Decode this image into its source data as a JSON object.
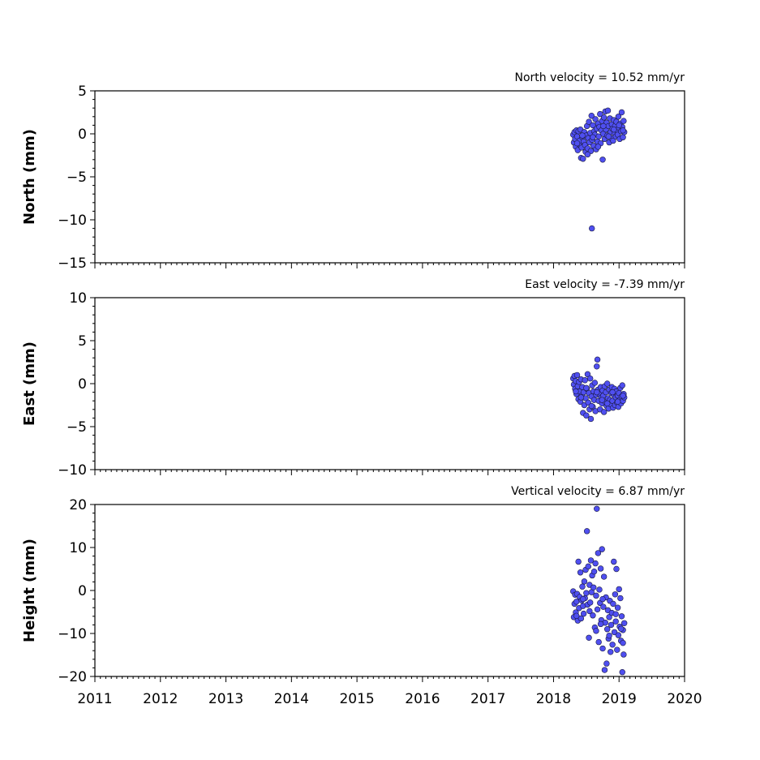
{
  "chart_data": [
    {
      "type": "scatter",
      "title": "North velocity = 10.52 mm/yr",
      "ylabel": "North (mm)",
      "xlim": [
        2011,
        2020
      ],
      "ylim": [
        -15,
        5
      ],
      "yticks": [
        5,
        0,
        -5,
        -10,
        -15
      ],
      "marker_color": "#4f4ff0",
      "points": [
        [
          2018.3,
          -0.1
        ],
        [
          2018.31,
          -1.0
        ],
        [
          2018.32,
          0.2
        ],
        [
          2018.33,
          -0.6
        ],
        [
          2018.34,
          -1.5
        ],
        [
          2018.35,
          0.4
        ],
        [
          2018.36,
          -0.3
        ],
        [
          2018.37,
          -1.9
        ],
        [
          2018.38,
          0.3
        ],
        [
          2018.39,
          -1.2
        ],
        [
          2018.4,
          -0.8
        ],
        [
          2018.41,
          0.5
        ],
        [
          2018.42,
          -2.8
        ],
        [
          2018.43,
          -1.6
        ],
        [
          2018.44,
          -0.4
        ],
        [
          2018.45,
          -2.9
        ],
        [
          2018.46,
          -0.9
        ],
        [
          2018.47,
          0.2
        ],
        [
          2018.48,
          -1.3
        ],
        [
          2018.49,
          -2.1
        ],
        [
          2018.5,
          -0.2
        ],
        [
          2018.51,
          0.9
        ],
        [
          2018.52,
          -1.7
        ],
        [
          2018.53,
          -0.5
        ],
        [
          2018.54,
          1.4
        ],
        [
          2018.55,
          -1.0
        ],
        [
          2018.56,
          0.1
        ],
        [
          2018.57,
          -2.0
        ],
        [
          2018.58,
          2.1
        ],
        [
          2018.585,
          -11.0
        ],
        [
          2018.59,
          -0.7
        ],
        [
          2018.6,
          1.0
        ],
        [
          2018.61,
          -1.4
        ],
        [
          2018.62,
          0.3
        ],
        [
          2018.63,
          -0.1
        ],
        [
          2018.64,
          1.7
        ],
        [
          2018.65,
          -1.8
        ],
        [
          2018.66,
          0.6
        ],
        [
          2018.67,
          -0.9
        ],
        [
          2018.68,
          1.2
        ],
        [
          2018.69,
          -0.3
        ],
        [
          2018.7,
          0.8
        ],
        [
          2018.71,
          2.3
        ],
        [
          2018.72,
          -1.1
        ],
        [
          2018.73,
          0.4
        ],
        [
          2018.74,
          1.5
        ],
        [
          2018.75,
          -3.0
        ],
        [
          2018.76,
          0.0
        ],
        [
          2018.77,
          1.9
        ],
        [
          2018.78,
          -0.6
        ],
        [
          2018.79,
          2.6
        ],
        [
          2018.8,
          0.5
        ],
        [
          2018.81,
          1.3
        ],
        [
          2018.82,
          -0.2
        ],
        [
          2018.83,
          2.7
        ],
        [
          2018.84,
          0.9
        ],
        [
          2018.85,
          -1.0
        ],
        [
          2018.86,
          1.8
        ],
        [
          2018.87,
          0.2
        ],
        [
          2018.88,
          -0.5
        ],
        [
          2018.89,
          1.1
        ],
        [
          2018.9,
          0.6
        ],
        [
          2018.91,
          -0.8
        ],
        [
          2018.92,
          1.6
        ],
        [
          2018.93,
          0.1
        ],
        [
          2018.94,
          0.9
        ],
        [
          2018.95,
          -0.3
        ],
        [
          2018.96,
          1.4
        ],
        [
          2018.97,
          0.4
        ],
        [
          2018.98,
          -0.1
        ],
        [
          2018.99,
          2.0
        ],
        [
          2019.0,
          0.7
        ],
        [
          2019.01,
          -0.6
        ],
        [
          2019.02,
          1.2
        ],
        [
          2019.03,
          0.3
        ],
        [
          2019.04,
          2.5
        ],
        [
          2019.05,
          0.8
        ],
        [
          2019.06,
          -0.4
        ],
        [
          2019.07,
          1.5
        ],
        [
          2019.08,
          0.2
        ],
        [
          2018.36,
          -1.1
        ],
        [
          2018.44,
          -0.2
        ],
        [
          2018.52,
          -2.4
        ],
        [
          2018.6,
          -0.4
        ],
        [
          2018.68,
          -1.5
        ],
        [
          2018.76,
          0.9
        ],
        [
          2018.84,
          -0.3
        ],
        [
          2018.92,
          0.5
        ],
        [
          2019.0,
          1.0
        ],
        [
          2019.06,
          0.4
        ]
      ]
    },
    {
      "type": "scatter",
      "title": "East velocity = -7.39 mm/yr",
      "ylabel": "East (mm)",
      "xlim": [
        2011,
        2020
      ],
      "ylim": [
        -10,
        10
      ],
      "yticks": [
        10,
        5,
        0,
        -5,
        -10
      ],
      "marker_color": "#4f4ff0",
      "points": [
        [
          2018.3,
          0.6
        ],
        [
          2018.31,
          -0.1
        ],
        [
          2018.32,
          0.9
        ],
        [
          2018.33,
          -0.6
        ],
        [
          2018.34,
          0.3
        ],
        [
          2018.35,
          -1.2
        ],
        [
          2018.36,
          1.0
        ],
        [
          2018.37,
          -0.3
        ],
        [
          2018.38,
          -1.8
        ],
        [
          2018.39,
          0.2
        ],
        [
          2018.4,
          -0.9
        ],
        [
          2018.41,
          -2.1
        ],
        [
          2018.42,
          0.5
        ],
        [
          2018.43,
          -1.4
        ],
        [
          2018.44,
          -0.4
        ],
        [
          2018.45,
          -3.4
        ],
        [
          2018.46,
          -1.0
        ],
        [
          2018.47,
          -2.5
        ],
        [
          2018.48,
          0.4
        ],
        [
          2018.49,
          -1.7
        ],
        [
          2018.5,
          -3.7
        ],
        [
          2018.51,
          -0.6
        ],
        [
          2018.52,
          1.1
        ],
        [
          2018.53,
          -2.2
        ],
        [
          2018.54,
          -1.1
        ],
        [
          2018.55,
          -3.0
        ],
        [
          2018.56,
          0.6
        ],
        [
          2018.57,
          -4.1
        ],
        [
          2018.58,
          -1.5
        ],
        [
          2018.59,
          -0.2
        ],
        [
          2018.6,
          -2.7
        ],
        [
          2018.61,
          -0.9
        ],
        [
          2018.62,
          -1.9
        ],
        [
          2018.63,
          0.1
        ],
        [
          2018.64,
          -3.2
        ],
        [
          2018.65,
          -1.3
        ],
        [
          2018.66,
          2.0
        ],
        [
          2018.67,
          2.8
        ],
        [
          2018.68,
          -0.7
        ],
        [
          2018.69,
          -2.0
        ],
        [
          2018.7,
          -1.2
        ],
        [
          2018.71,
          -3.0
        ],
        [
          2018.72,
          -0.4
        ],
        [
          2018.73,
          -1.6
        ],
        [
          2018.74,
          -2.3
        ],
        [
          2018.75,
          -0.8
        ],
        [
          2018.76,
          -1.4
        ],
        [
          2018.77,
          -3.3
        ],
        [
          2018.78,
          -0.3
        ],
        [
          2018.79,
          -2.1
        ],
        [
          2018.8,
          -1.0
        ],
        [
          2018.81,
          -2.6
        ],
        [
          2018.82,
          0.0
        ],
        [
          2018.83,
          -1.7
        ],
        [
          2018.84,
          -2.9
        ],
        [
          2018.85,
          -0.7
        ],
        [
          2018.86,
          -1.9
        ],
        [
          2018.87,
          -2.4
        ],
        [
          2018.88,
          -1.1
        ],
        [
          2018.89,
          -0.4
        ],
        [
          2018.9,
          -2.0
        ],
        [
          2018.91,
          -2.8
        ],
        [
          2018.92,
          -1.3
        ],
        [
          2018.93,
          -0.6
        ],
        [
          2018.94,
          -2.5
        ],
        [
          2018.95,
          -1.6
        ],
        [
          2018.96,
          -0.9
        ],
        [
          2018.97,
          -2.2
        ],
        [
          2018.98,
          -1.4
        ],
        [
          2018.99,
          -2.7
        ],
        [
          2019.0,
          -1.1
        ],
        [
          2019.01,
          -1.9
        ],
        [
          2019.02,
          -0.5
        ],
        [
          2019.03,
          -2.3
        ],
        [
          2019.04,
          -1.5
        ],
        [
          2019.05,
          -0.2
        ],
        [
          2019.06,
          -2.0
        ],
        [
          2019.07,
          -1.2
        ],
        [
          2019.08,
          -1.6
        ],
        [
          2018.34,
          -0.9
        ],
        [
          2018.42,
          -1.6
        ],
        [
          2018.5,
          -0.5
        ],
        [
          2018.58,
          -2.6
        ],
        [
          2018.66,
          -1.0
        ],
        [
          2018.74,
          -1.9
        ],
        [
          2018.82,
          -2.3
        ],
        [
          2018.9,
          -1.0
        ],
        [
          2018.98,
          -2.1
        ],
        [
          2019.06,
          -1.4
        ]
      ]
    },
    {
      "type": "scatter",
      "title": "Vertical velocity = 6.87 mm/yr",
      "ylabel": "Height (mm)",
      "xlim": [
        2011,
        2020
      ],
      "ylim": [
        -20,
        20
      ],
      "yticks": [
        20,
        10,
        0,
        -10,
        -20
      ],
      "xticks": [
        2011,
        2012,
        2013,
        2014,
        2015,
        2016,
        2017,
        2018,
        2019,
        2020
      ],
      "marker_color": "#4f4ff0",
      "points": [
        [
          2018.3,
          -0.2
        ],
        [
          2018.31,
          -6.2
        ],
        [
          2018.32,
          -3.1
        ],
        [
          2018.33,
          -1.0
        ],
        [
          2018.34,
          -5.1
        ],
        [
          2018.35,
          -2.6
        ],
        [
          2018.36,
          -0.8
        ],
        [
          2018.37,
          -7.0
        ],
        [
          2018.38,
          6.7
        ],
        [
          2018.39,
          -4.1
        ],
        [
          2018.4,
          -1.5
        ],
        [
          2018.41,
          4.2
        ],
        [
          2018.42,
          -6.5
        ],
        [
          2018.43,
          -2.3
        ],
        [
          2018.44,
          0.9
        ],
        [
          2018.45,
          -3.6
        ],
        [
          2018.46,
          -5.4
        ],
        [
          2018.47,
          2.1
        ],
        [
          2018.48,
          -1.8
        ],
        [
          2018.49,
          4.8
        ],
        [
          2018.5,
          -0.6
        ],
        [
          2018.51,
          13.8
        ],
        [
          2018.52,
          -3.3
        ],
        [
          2018.53,
          5.6
        ],
        [
          2018.54,
          -11.0
        ],
        [
          2018.55,
          1.3
        ],
        [
          2018.56,
          -2.8
        ],
        [
          2018.57,
          7.0
        ],
        [
          2018.58,
          -0.4
        ],
        [
          2018.59,
          3.5
        ],
        [
          2018.6,
          -5.8
        ],
        [
          2018.61,
          0.7
        ],
        [
          2018.62,
          4.4
        ],
        [
          2018.63,
          -8.6
        ],
        [
          2018.64,
          6.3
        ],
        [
          2018.65,
          -1.2
        ],
        [
          2018.66,
          19.0
        ],
        [
          2018.67,
          -4.4
        ],
        [
          2018.68,
          8.7
        ],
        [
          2018.69,
          -12.0
        ],
        [
          2018.7,
          0.2
        ],
        [
          2018.71,
          -2.9
        ],
        [
          2018.72,
          5.1
        ],
        [
          2018.73,
          -6.9
        ],
        [
          2018.74,
          9.6
        ],
        [
          2018.75,
          -13.5
        ],
        [
          2018.76,
          -3.8
        ],
        [
          2018.77,
          3.2
        ],
        [
          2018.78,
          -18.5
        ],
        [
          2018.79,
          -7.5
        ],
        [
          2018.8,
          -1.6
        ],
        [
          2018.81,
          -17.0
        ],
        [
          2018.82,
          -9.0
        ],
        [
          2018.83,
          -4.6
        ],
        [
          2018.84,
          -11.2
        ],
        [
          2018.85,
          -6.2
        ],
        [
          2018.86,
          -2.4
        ],
        [
          2018.87,
          -14.3
        ],
        [
          2018.88,
          -8.0
        ],
        [
          2018.89,
          -5.2
        ],
        [
          2018.9,
          -12.6
        ],
        [
          2018.91,
          -3.1
        ],
        [
          2018.92,
          6.7
        ],
        [
          2018.93,
          -9.7
        ],
        [
          2018.94,
          -0.9
        ],
        [
          2018.95,
          -7.2
        ],
        [
          2018.96,
          5.0
        ],
        [
          2018.97,
          -13.8
        ],
        [
          2018.98,
          -4.0
        ],
        [
          2018.99,
          -10.4
        ],
        [
          2019.0,
          0.3
        ],
        [
          2019.01,
          -8.4
        ],
        [
          2019.02,
          -1.8
        ],
        [
          2019.03,
          -11.7
        ],
        [
          2019.04,
          -6.0
        ],
        [
          2019.05,
          -19.0
        ],
        [
          2019.06,
          -9.2
        ],
        [
          2019.07,
          -14.9
        ],
        [
          2019.08,
          -7.6
        ],
        [
          2018.35,
          -5.9
        ],
        [
          2018.45,
          -2.0
        ],
        [
          2018.55,
          -4.8
        ],
        [
          2018.65,
          -9.4
        ],
        [
          2018.75,
          -2.0
        ],
        [
          2018.85,
          -10.5
        ],
        [
          2018.95,
          -5.5
        ],
        [
          2019.03,
          -8.9
        ],
        [
          2019.06,
          -12.2
        ],
        [
          2018.72,
          -7.8
        ]
      ]
    }
  ]
}
